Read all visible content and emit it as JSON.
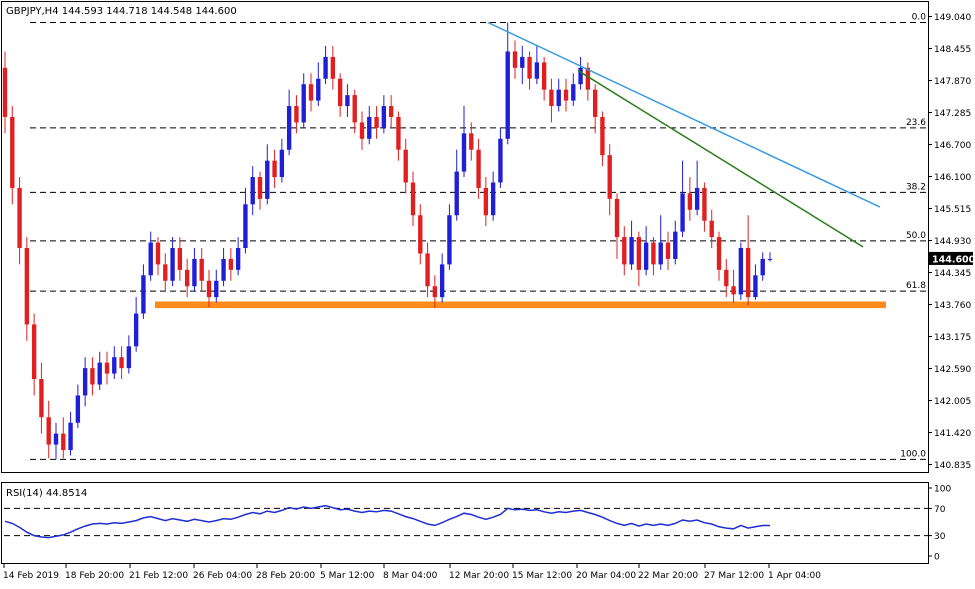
{
  "header": {
    "title": "GBPJPY,H4  144.593 144.718 144.548 144.600",
    "rsi_title": "RSI(14) 44.8514"
  },
  "colors": {
    "bull": "#1f1fd6",
    "bear": "#e02020",
    "support": "#ff8c1a",
    "trend_upper": "#3a9ae0",
    "trend_lower": "#2a7d1a",
    "rsi": "#1f2ed0",
    "grid": "#000000"
  },
  "chart_data": [
    {
      "type": "candlestick",
      "symbol": "GBPJPY",
      "timeframe": "H4",
      "title": "GBPJPY,H4  144.593 144.718 144.548 144.600",
      "ohlc_last": {
        "open": 144.593,
        "high": 144.718,
        "low": 144.548,
        "close": 144.6
      },
      "current_price_label": "144.600",
      "ylim": [
        140.835,
        149.04
      ],
      "yticks": [
        "149.040",
        "148.455",
        "147.870",
        "147.285",
        "146.700",
        "146.100",
        "145.515",
        "144.930",
        "144.345",
        "143.760",
        "143.175",
        "142.590",
        "142.005",
        "141.420",
        "140.835"
      ],
      "xticks": [
        "14 Feb 2019",
        "18 Feb 20:00",
        "21 Feb 12:00",
        "26 Feb 04:00",
        "28 Feb 20:00",
        "5 Mar 12:00",
        "8 Mar 04:00",
        "12 Mar 20:00",
        "15 Mar 12:00",
        "20 Mar 04:00",
        "22 Mar 20:00",
        "27 Mar 12:00",
        "1 Apr 04:00"
      ],
      "fibonacci": [
        {
          "level": "0.0",
          "price": 148.93
        },
        {
          "level": "23.6",
          "price": 147.0
        },
        {
          "level": "38.2",
          "price": 145.82
        },
        {
          "level": "50.0",
          "price": 144.93
        },
        {
          "level": "61.8",
          "price": 144.01
        },
        {
          "level": "100.0",
          "price": 140.93
        }
      ],
      "support_zone": {
        "price_top": 143.82,
        "price_bottom": 143.7,
        "from": "21 Feb 12:00",
        "to": "1 Apr 04:00"
      },
      "trendlines": [
        {
          "from_price": 148.93,
          "to_price": 145.55,
          "from": "12 Mar 20:00",
          "to": "2 Apr 2019"
        },
        {
          "from_price": 148.05,
          "to_price": 144.82,
          "from": "19 Mar 2019",
          "to": "2 Apr 2019"
        }
      ],
      "candles": [
        [
          148.1,
          147.2,
          148.4,
          146.9
        ],
        [
          147.2,
          145.9,
          147.4,
          145.6
        ],
        [
          145.9,
          144.8,
          146.1,
          144.5
        ],
        [
          144.8,
          143.4,
          145.0,
          143.1
        ],
        [
          143.4,
          142.4,
          143.6,
          142.1
        ],
        [
          142.4,
          141.7,
          142.7,
          141.4
        ],
        [
          141.7,
          141.2,
          142.0,
          140.95
        ],
        [
          141.2,
          141.4,
          141.6,
          140.93
        ],
        [
          141.4,
          141.1,
          141.7,
          140.95
        ],
        [
          141.1,
          141.6,
          141.8,
          141.0
        ],
        [
          141.6,
          142.1,
          142.3,
          141.5
        ],
        [
          142.1,
          142.6,
          142.8,
          141.9
        ],
        [
          142.6,
          142.3,
          142.8,
          142.1
        ],
        [
          142.3,
          142.7,
          142.9,
          142.2
        ],
        [
          142.7,
          142.5,
          142.9,
          142.3
        ],
        [
          142.5,
          142.8,
          143.0,
          142.4
        ],
        [
          142.8,
          142.6,
          143.0,
          142.4
        ],
        [
          142.6,
          143.0,
          143.2,
          142.5
        ],
        [
          143.0,
          143.6,
          143.9,
          142.9
        ],
        [
          143.6,
          144.3,
          144.5,
          143.5
        ],
        [
          144.3,
          144.9,
          145.1,
          144.2
        ],
        [
          144.9,
          144.5,
          145.0,
          144.3
        ],
        [
          144.5,
          144.2,
          144.7,
          144.0
        ],
        [
          144.2,
          144.8,
          145.0,
          144.1
        ],
        [
          144.8,
          144.4,
          145.0,
          144.2
        ],
        [
          144.4,
          144.1,
          144.6,
          143.9
        ],
        [
          144.1,
          144.6,
          144.8,
          144.0
        ],
        [
          144.6,
          144.2,
          144.8,
          144.0
        ],
        [
          144.2,
          143.9,
          144.4,
          143.72
        ],
        [
          143.9,
          144.2,
          144.4,
          143.8
        ],
        [
          144.2,
          144.6,
          144.8,
          144.1
        ],
        [
          144.6,
          144.4,
          144.8,
          144.2
        ],
        [
          144.4,
          144.8,
          145.0,
          144.3
        ],
        [
          144.8,
          145.6,
          145.9,
          144.7
        ],
        [
          145.6,
          146.1,
          146.3,
          145.4
        ],
        [
          146.1,
          145.7,
          146.2,
          145.5
        ],
        [
          145.7,
          146.4,
          146.7,
          145.6
        ],
        [
          146.4,
          146.1,
          146.6,
          145.9
        ],
        [
          146.1,
          146.6,
          146.8,
          146.0
        ],
        [
          146.6,
          147.4,
          147.7,
          146.5
        ],
        [
          147.4,
          147.1,
          147.6,
          146.9
        ],
        [
          147.1,
          147.8,
          148.0,
          147.0
        ],
        [
          147.8,
          147.5,
          148.0,
          147.3
        ],
        [
          147.5,
          147.9,
          148.2,
          147.4
        ],
        [
          147.9,
          148.3,
          148.5,
          147.8
        ],
        [
          148.3,
          147.9,
          148.5,
          147.7
        ],
        [
          147.9,
          147.4,
          148.0,
          147.2
        ],
        [
          147.4,
          147.6,
          147.8,
          147.2
        ],
        [
          147.6,
          147.1,
          147.7,
          146.9
        ],
        [
          147.1,
          146.8,
          147.3,
          146.6
        ],
        [
          146.8,
          147.2,
          147.4,
          146.7
        ],
        [
          147.2,
          147.0,
          147.4,
          146.8
        ],
        [
          147.0,
          147.4,
          147.6,
          146.9
        ],
        [
          147.4,
          147.2,
          147.6,
          147.0
        ],
        [
          147.2,
          146.6,
          147.3,
          146.4
        ],
        [
          146.6,
          146.0,
          146.8,
          145.8
        ],
        [
          146.0,
          145.4,
          146.2,
          145.2
        ],
        [
          145.4,
          144.7,
          145.6,
          144.5
        ],
        [
          144.7,
          144.1,
          144.9,
          143.9
        ],
        [
          144.1,
          143.9,
          144.3,
          143.7
        ],
        [
          143.9,
          144.5,
          144.7,
          143.8
        ],
        [
          144.5,
          145.4,
          145.6,
          144.4
        ],
        [
          145.4,
          146.2,
          146.6,
          145.3
        ],
        [
          146.2,
          146.9,
          147.4,
          146.1
        ],
        [
          146.9,
          146.6,
          147.1,
          146.4
        ],
        [
          146.6,
          145.9,
          146.8,
          145.7
        ],
        [
          145.9,
          145.4,
          146.1,
          145.2
        ],
        [
          145.4,
          146.0,
          146.2,
          145.3
        ],
        [
          146.0,
          146.8,
          147.0,
          145.9
        ],
        [
          146.8,
          148.4,
          148.93,
          146.7
        ],
        [
          148.4,
          148.1,
          148.6,
          147.9
        ],
        [
          148.1,
          148.3,
          148.5,
          147.8
        ],
        [
          148.3,
          147.9,
          148.4,
          147.7
        ],
        [
          147.9,
          148.2,
          148.5,
          147.8
        ],
        [
          148.2,
          147.7,
          148.3,
          147.5
        ],
        [
          147.7,
          147.4,
          147.9,
          147.1
        ],
        [
          147.4,
          147.7,
          147.9,
          147.3
        ],
        [
          147.7,
          147.5,
          147.9,
          147.3
        ],
        [
          147.5,
          147.8,
          148.0,
          147.4
        ],
        [
          147.8,
          148.1,
          148.3,
          147.7
        ],
        [
          148.1,
          147.7,
          148.2,
          147.5
        ],
        [
          147.7,
          147.2,
          147.8,
          146.9
        ],
        [
          147.2,
          146.5,
          147.3,
          146.3
        ],
        [
          146.5,
          145.7,
          146.7,
          145.4
        ],
        [
          145.7,
          145.0,
          145.8,
          144.6
        ],
        [
          145.0,
          144.5,
          145.2,
          144.3
        ],
        [
          144.5,
          145.0,
          145.3,
          144.4
        ],
        [
          145.0,
          144.4,
          145.1,
          144.1
        ],
        [
          144.4,
          144.9,
          145.2,
          144.3
        ],
        [
          144.9,
          144.5,
          145.0,
          144.3
        ],
        [
          144.5,
          144.9,
          145.4,
          144.4
        ],
        [
          144.9,
          144.6,
          145.1,
          144.4
        ],
        [
          144.6,
          145.1,
          145.3,
          144.5
        ],
        [
          145.1,
          145.8,
          146.4,
          145.0
        ],
        [
          145.8,
          145.5,
          146.1,
          145.3
        ],
        [
          145.5,
          145.9,
          146.4,
          145.4
        ],
        [
          145.9,
          145.3,
          146.0,
          145.1
        ],
        [
          145.3,
          145.0,
          145.5,
          144.8
        ],
        [
          145.0,
          144.4,
          145.1,
          144.2
        ],
        [
          144.4,
          144.1,
          144.6,
          143.9
        ],
        [
          144.1,
          143.95,
          144.4,
          143.8
        ],
        [
          143.95,
          144.8,
          144.9,
          143.85
        ],
        [
          144.8,
          143.9,
          145.4,
          143.75
        ],
        [
          143.9,
          144.3,
          144.5,
          143.85
        ],
        [
          144.3,
          144.6,
          144.72,
          144.2
        ],
        [
          144.59,
          144.6,
          144.72,
          144.55
        ]
      ]
    },
    {
      "type": "line",
      "title": "RSI(14) 44.8514",
      "ylim": [
        0,
        100
      ],
      "yticks": [
        "100",
        "70",
        "30",
        "0"
      ],
      "levels": [
        70,
        30
      ],
      "values": [
        51,
        48,
        42,
        35,
        30,
        28,
        27,
        29,
        31,
        35,
        40,
        44,
        47,
        48,
        47,
        49,
        48,
        50,
        52,
        56,
        58,
        55,
        52,
        55,
        53,
        51,
        54,
        52,
        50,
        52,
        55,
        54,
        57,
        61,
        64,
        62,
        66,
        64,
        67,
        71,
        69,
        72,
        70,
        72,
        74,
        71,
        68,
        69,
        66,
        64,
        66,
        65,
        67,
        66,
        62,
        58,
        55,
        51,
        47,
        45,
        49,
        54,
        58,
        63,
        61,
        57,
        54,
        57,
        61,
        70,
        68,
        69,
        67,
        68,
        65,
        63,
        65,
        64,
        66,
        67,
        64,
        61,
        57,
        52,
        48,
        45,
        48,
        44,
        47,
        45,
        47,
        45,
        48,
        53,
        51,
        53,
        49,
        47,
        43,
        41,
        40,
        45,
        41,
        43,
        44.85,
        44.85
      ]
    }
  ]
}
